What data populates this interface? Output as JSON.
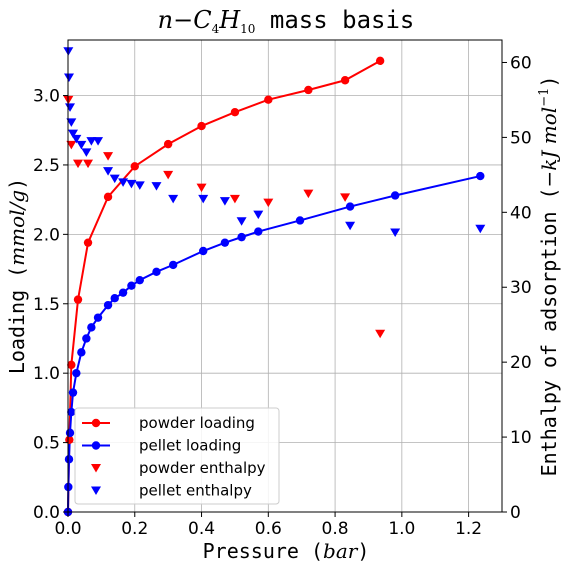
{
  "chart_data": {
    "type": "scatter",
    "title": "n − C₄H₁₀ mass basis",
    "title_parts": {
      "n": "n",
      "minus": "−",
      "c": "C",
      "c_sub": "4",
      "h": "H",
      "h_sub": "10",
      "rest": " mass basis"
    },
    "xlabel": "Pressure (bar)",
    "xlabel_parts": {
      "text": "Pressure (",
      "unit": "bar",
      "close": ")"
    },
    "ylabel": "Loading (mmol/g)",
    "ylabel_parts": {
      "text": "Loading (",
      "unit": "mmol/g",
      "close": ")"
    },
    "y2label": "Enthalpy of adsorption (−kJ mol⁻¹)",
    "y2label_parts": {
      "text": "Enthalpy of adsorption (",
      "unit": "−kJ mol",
      "sup": "−1",
      "close": ")"
    },
    "xlim": [
      0,
      1.3
    ],
    "ylim": [
      0,
      3.4
    ],
    "y2lim": [
      0,
      63
    ],
    "xticks": [
      "0.0",
      "0.2",
      "0.4",
      "0.6",
      "0.8",
      "1.0",
      "1.2"
    ],
    "yticks": [
      "0.0",
      "0.5",
      "1.0",
      "1.5",
      "2.0",
      "2.5",
      "3.0"
    ],
    "y2ticks": [
      "0",
      "10",
      "20",
      "30",
      "40",
      "50",
      "60"
    ],
    "grid": true,
    "legend_position": "lower-left",
    "series": [
      {
        "name": "powder  loading",
        "color": "#ff0000",
        "marker": "circle",
        "line": true,
        "axis": "left",
        "x": [
          0.0,
          0.004,
          0.01,
          0.03,
          0.06,
          0.12,
          0.2,
          0.3,
          0.4,
          0.5,
          0.6,
          0.72,
          0.83,
          0.935
        ],
        "y": [
          0.0,
          0.52,
          1.06,
          1.53,
          1.94,
          2.27,
          2.49,
          2.65,
          2.78,
          2.88,
          2.97,
          3.04,
          3.11,
          3.25
        ]
      },
      {
        "name": "pellet loading",
        "color": "#0000ff",
        "marker": "circle",
        "line": true,
        "axis": "left",
        "x": [
          0.0,
          0.001,
          0.003,
          0.006,
          0.01,
          0.015,
          0.025,
          0.04,
          0.055,
          0.07,
          0.09,
          0.12,
          0.14,
          0.165,
          0.19,
          0.215,
          0.265,
          0.315,
          0.405,
          0.47,
          0.52,
          0.57,
          0.695,
          0.845,
          0.98,
          1.235
        ],
        "y": [
          0.0,
          0.18,
          0.38,
          0.57,
          0.72,
          0.86,
          1.0,
          1.15,
          1.25,
          1.33,
          1.4,
          1.49,
          1.54,
          1.58,
          1.63,
          1.67,
          1.73,
          1.78,
          1.88,
          1.94,
          1.98,
          2.02,
          2.1,
          2.2,
          2.28,
          2.42
        ]
      },
      {
        "name": "powder  enthalpy",
        "color": "#ff0000",
        "marker": "triangle-down",
        "line": false,
        "axis": "right",
        "x": [
          0.001,
          0.01,
          0.03,
          0.06,
          0.12,
          0.3,
          0.4,
          0.5,
          0.6,
          0.72,
          0.83,
          0.935
        ],
        "y": [
          55.0,
          49.0,
          46.5,
          46.5,
          47.5,
          45.0,
          43.3,
          41.8,
          41.3,
          42.5,
          42.0,
          23.8
        ]
      },
      {
        "name": "pellet enthalpy",
        "color": "#0000ff",
        "marker": "triangle-down",
        "line": false,
        "axis": "right",
        "x": [
          0.001,
          0.003,
          0.006,
          0.01,
          0.015,
          0.025,
          0.04,
          0.055,
          0.07,
          0.09,
          0.12,
          0.14,
          0.165,
          0.19,
          0.215,
          0.265,
          0.315,
          0.405,
          0.47,
          0.52,
          0.57,
          0.845,
          0.98,
          1.235
        ],
        "y": [
          61.5,
          58.0,
          54.0,
          52.0,
          50.5,
          49.8,
          49.0,
          48.0,
          49.5,
          49.5,
          45.5,
          44.5,
          44.0,
          43.8,
          43.6,
          43.5,
          41.8,
          41.8,
          41.5,
          38.8,
          39.7,
          38.2,
          37.3,
          37.8
        ]
      }
    ]
  }
}
